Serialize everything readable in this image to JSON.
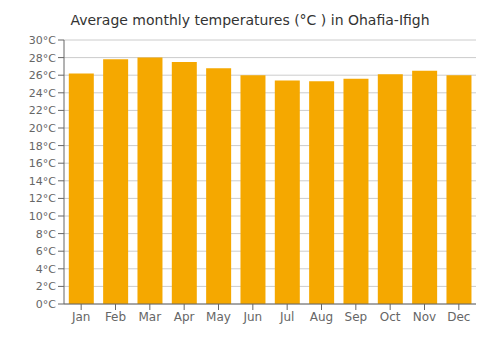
{
  "chart_data": {
    "type": "bar",
    "title": "Average monthly temperatures (°C ) in Ohafia-Ifigh",
    "categories": [
      "Jan",
      "Feb",
      "Mar",
      "Apr",
      "May",
      "Jun",
      "Jul",
      "Aug",
      "Sep",
      "Oct",
      "Nov",
      "Dec"
    ],
    "values": [
      26.2,
      27.8,
      28.0,
      27.5,
      26.8,
      26.0,
      25.4,
      25.3,
      25.6,
      26.1,
      26.5,
      26.0
    ],
    "color": "#F5A800",
    "ylim": [
      0,
      30
    ],
    "yticks": [
      {
        "value": 0,
        "label": "0°C"
      },
      {
        "value": 2,
        "label": "2°C"
      },
      {
        "value": 4,
        "label": "4°C"
      },
      {
        "value": 6,
        "label": "6°C"
      },
      {
        "value": 8,
        "label": "8°C"
      },
      {
        "value": 10,
        "label": "10°C"
      },
      {
        "value": 12,
        "label": "12°C"
      },
      {
        "value": 14,
        "label": "14°C"
      },
      {
        "value": 16,
        "label": "16°C"
      },
      {
        "value": 18,
        "label": "18°C"
      },
      {
        "value": 20,
        "label": "20°C"
      },
      {
        "value": 22,
        "label": "22°C"
      },
      {
        "value": 24,
        "label": "24°C"
      },
      {
        "value": 26,
        "label": "26°C"
      },
      {
        "value": 28,
        "label": "28°C"
      },
      {
        "value": 30,
        "label": "30°C"
      }
    ],
    "grid": true
  }
}
